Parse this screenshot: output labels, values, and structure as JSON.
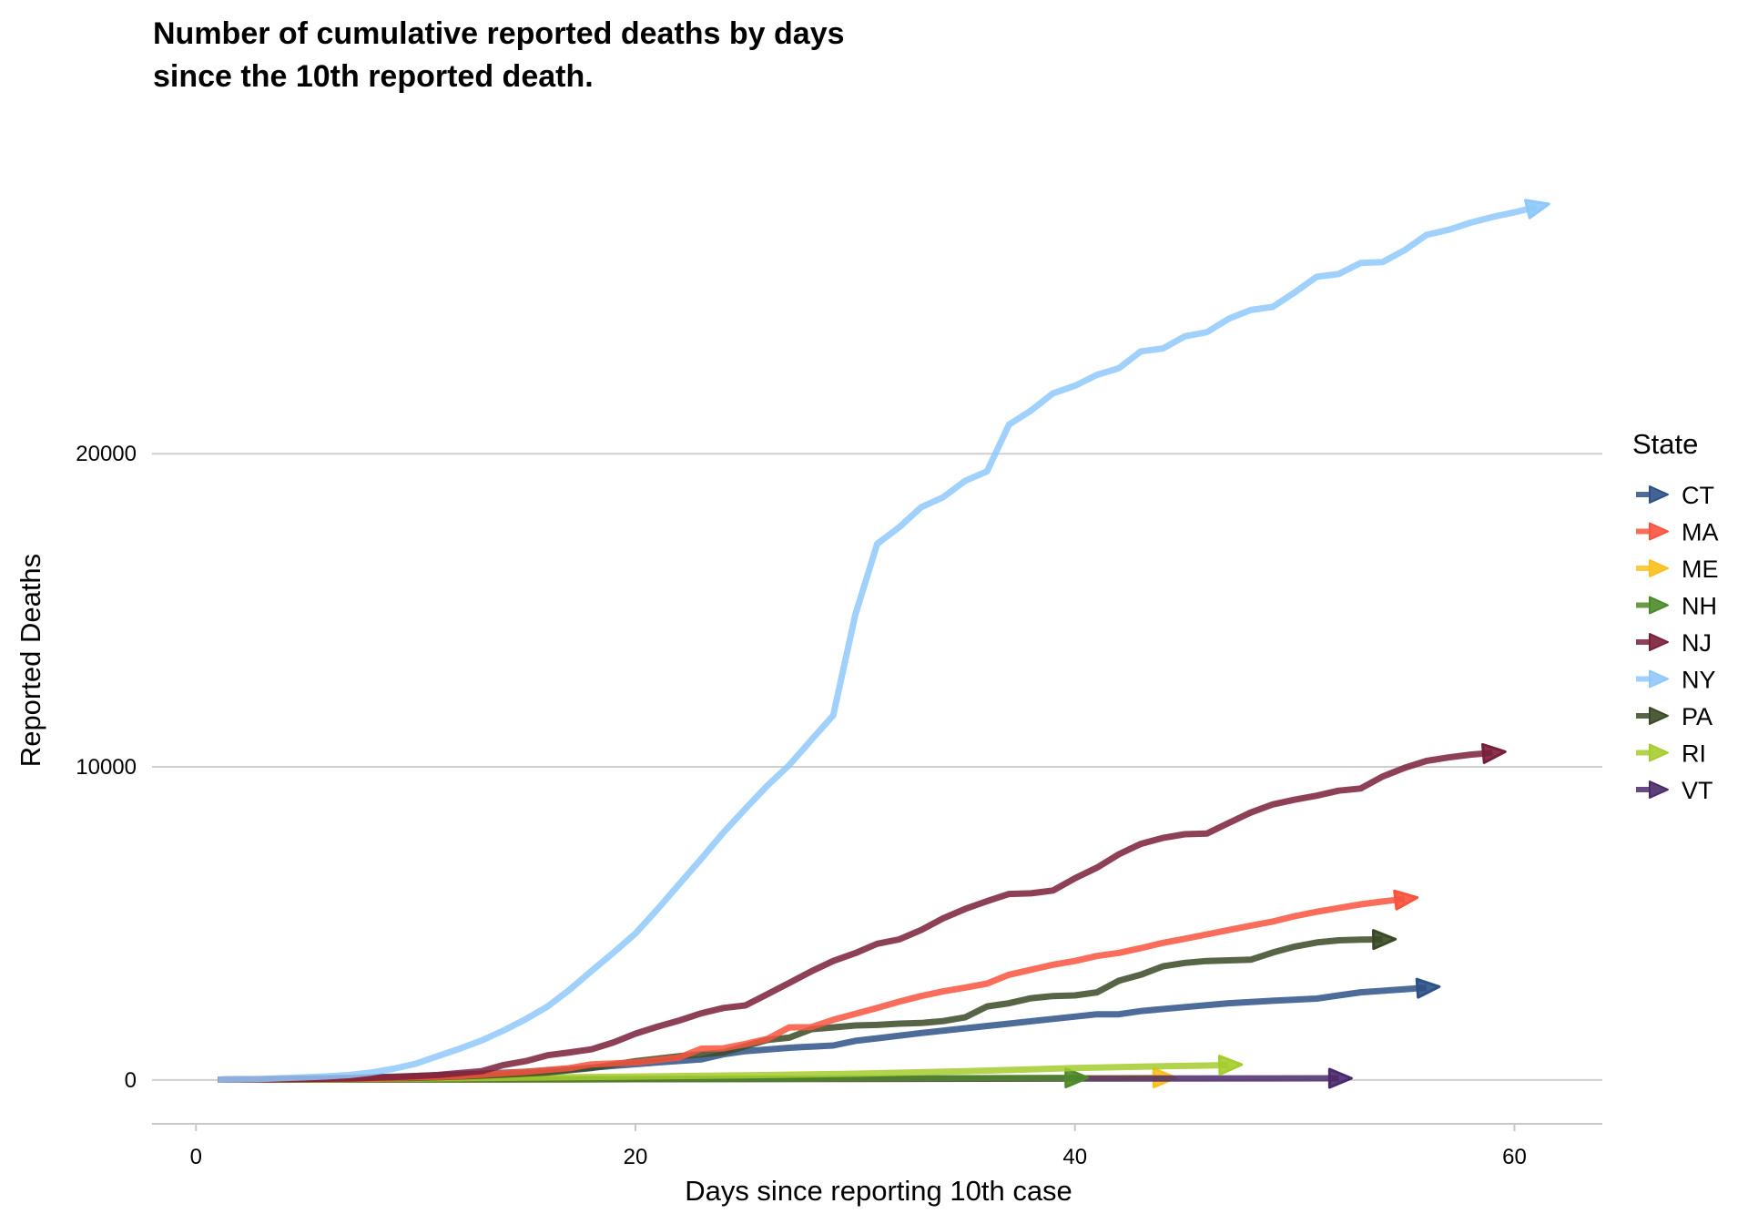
{
  "chart_data": {
    "type": "line",
    "title": [
      "Number of cumulative reported deaths by days",
      "since the 10th reported death."
    ],
    "xlabel": "Days since reporting 10th case",
    "ylabel": "Reported Deaths",
    "xlim": [
      -2,
      64
    ],
    "ylim": [
      -1400,
      31000
    ],
    "x_ticks": [
      0,
      20,
      40,
      60
    ],
    "y_ticks": [
      0,
      10000,
      20000
    ],
    "grid": "horizontal major",
    "legend": {
      "title": "State",
      "position": "right"
    },
    "series": [
      {
        "name": "CT",
        "color": "#2E5288",
        "x": [
          1,
          3,
          5,
          7,
          9,
          11,
          13,
          15,
          17,
          19,
          21,
          23,
          24,
          25,
          27,
          29,
          30,
          31,
          33,
          35,
          37,
          39,
          41,
          42,
          43,
          45,
          47,
          49,
          51,
          52,
          53,
          55,
          56
        ],
        "y": [
          10,
          25,
          45,
          70,
          105,
          150,
          200,
          260,
          340,
          450,
          560,
          660,
          820,
          920,
          1030,
          1100,
          1250,
          1330,
          1500,
          1650,
          1800,
          1950,
          2100,
          2100,
          2200,
          2330,
          2450,
          2530,
          2600,
          2700,
          2800,
          2900,
          2950
        ]
      },
      {
        "name": "MA",
        "color": "#F8533D",
        "x": [
          1,
          4,
          8,
          12,
          15,
          17,
          18,
          20,
          21,
          22,
          23,
          24,
          25,
          26,
          27,
          28,
          29,
          30,
          31,
          32,
          33,
          34,
          35,
          36,
          37,
          38,
          39,
          40,
          41,
          42,
          43,
          44,
          45,
          46,
          47,
          48,
          49,
          50,
          51,
          52,
          53,
          54,
          55
        ],
        "y": [
          10,
          20,
          50,
          120,
          260,
          380,
          500,
          560,
          640,
          720,
          1000,
          1010,
          1150,
          1310,
          1680,
          1690,
          1920,
          2110,
          2300,
          2500,
          2680,
          2830,
          2950,
          3080,
          3360,
          3520,
          3680,
          3800,
          3960,
          4060,
          4210,
          4380,
          4510,
          4650,
          4790,
          4930,
          5060,
          5230,
          5370,
          5490,
          5610,
          5700,
          5780
        ]
      },
      {
        "name": "ME",
        "color": "#FCBF1E",
        "x": [
          1,
          10,
          20,
          30,
          40,
          44
        ],
        "y": [
          10,
          14,
          25,
          40,
          55,
          70
        ]
      },
      {
        "name": "NH",
        "color": "#4C8A2A",
        "x": [
          1,
          10,
          20,
          30,
          40
        ],
        "y": [
          10,
          15,
          25,
          45,
          70
        ]
      },
      {
        "name": "NJ",
        "color": "#7A1F3A",
        "x": [
          1,
          3,
          5,
          7,
          9,
          11,
          13,
          14,
          15,
          16,
          17,
          18,
          19,
          20,
          21,
          22,
          23,
          24,
          25,
          26,
          27,
          28,
          29,
          30,
          31,
          32,
          33,
          34,
          35,
          36,
          37,
          38,
          39,
          40,
          41,
          42,
          43,
          44,
          45,
          46,
          47,
          48,
          49,
          50,
          51,
          52,
          53,
          54,
          55,
          56,
          57,
          58,
          59
        ],
        "y": [
          10,
          16,
          30,
          50,
          90,
          160,
          280,
          480,
          600,
          790,
          880,
          980,
          1200,
          1480,
          1700,
          1900,
          2130,
          2300,
          2380,
          2740,
          3100,
          3470,
          3800,
          4050,
          4350,
          4490,
          4790,
          5160,
          5460,
          5710,
          5940,
          5960,
          6050,
          6440,
          6780,
          7210,
          7540,
          7730,
          7850,
          7870,
          8210,
          8540,
          8800,
          8950,
          9080,
          9240,
          9310,
          9690,
          9970,
          10190,
          10300,
          10390,
          10450
        ]
      },
      {
        "name": "NY",
        "color": "#8FC8FB",
        "x": [
          1,
          2,
          3,
          4,
          5,
          6,
          7,
          8,
          9,
          10,
          11,
          12,
          13,
          14,
          15,
          16,
          17,
          18,
          19,
          20,
          21,
          22,
          23,
          24,
          25,
          26,
          27,
          28,
          29,
          30,
          31,
          32,
          33,
          34,
          35,
          36,
          37,
          38,
          39,
          40,
          41,
          42,
          43,
          44,
          45,
          46,
          47,
          48,
          49,
          50,
          51,
          52,
          53,
          54,
          55,
          56,
          57,
          58,
          59,
          60,
          61
        ],
        "y": [
          10,
          20,
          35,
          60,
          85,
          115,
          160,
          240,
          360,
          520,
          760,
          1000,
          1260,
          1580,
          1940,
          2350,
          2880,
          3480,
          4070,
          4680,
          5450,
          6260,
          7070,
          7900,
          8660,
          9400,
          10060,
          10860,
          11640,
          14850,
          17120,
          17650,
          18290,
          18610,
          19130,
          19440,
          20930,
          21380,
          21930,
          22170,
          22520,
          22730,
          23270,
          23360,
          23750,
          23880,
          24310,
          24590,
          24690,
          25150,
          25650,
          25740,
          26090,
          26120,
          26500,
          26990,
          27150,
          27380,
          27560,
          27710,
          27880
        ]
      },
      {
        "name": "PA",
        "color": "#3A4A26",
        "x": [
          1,
          5,
          10,
          12,
          14,
          16,
          18,
          20,
          22,
          24,
          25,
          26,
          27,
          28,
          29,
          30,
          31,
          32,
          33,
          34,
          35,
          36,
          37,
          38,
          39,
          40,
          41,
          42,
          43,
          44,
          45,
          46,
          47,
          48,
          49,
          50,
          51,
          52,
          53,
          54
        ],
        "y": [
          10,
          30,
          70,
          110,
          170,
          240,
          380,
          600,
          760,
          880,
          1080,
          1280,
          1350,
          1620,
          1680,
          1740,
          1760,
          1800,
          1820,
          1880,
          2000,
          2350,
          2450,
          2610,
          2680,
          2700,
          2800,
          3170,
          3360,
          3630,
          3740,
          3800,
          3820,
          3840,
          4070,
          4260,
          4390,
          4460,
          4480,
          4490
        ]
      },
      {
        "name": "RI",
        "color": "#A5CD2D",
        "x": [
          1,
          5,
          10,
          15,
          20,
          25,
          30,
          35,
          40,
          42,
          44,
          46,
          47
        ],
        "y": [
          10,
          20,
          45,
          75,
          110,
          150,
          200,
          280,
          380,
          410,
          440,
          460,
          480
        ]
      },
      {
        "name": "VT",
        "color": "#4B2A6B",
        "x": [
          1,
          10,
          20,
          30,
          40,
          52
        ],
        "y": [
          10,
          15,
          25,
          35,
          45,
          55
        ]
      }
    ]
  }
}
